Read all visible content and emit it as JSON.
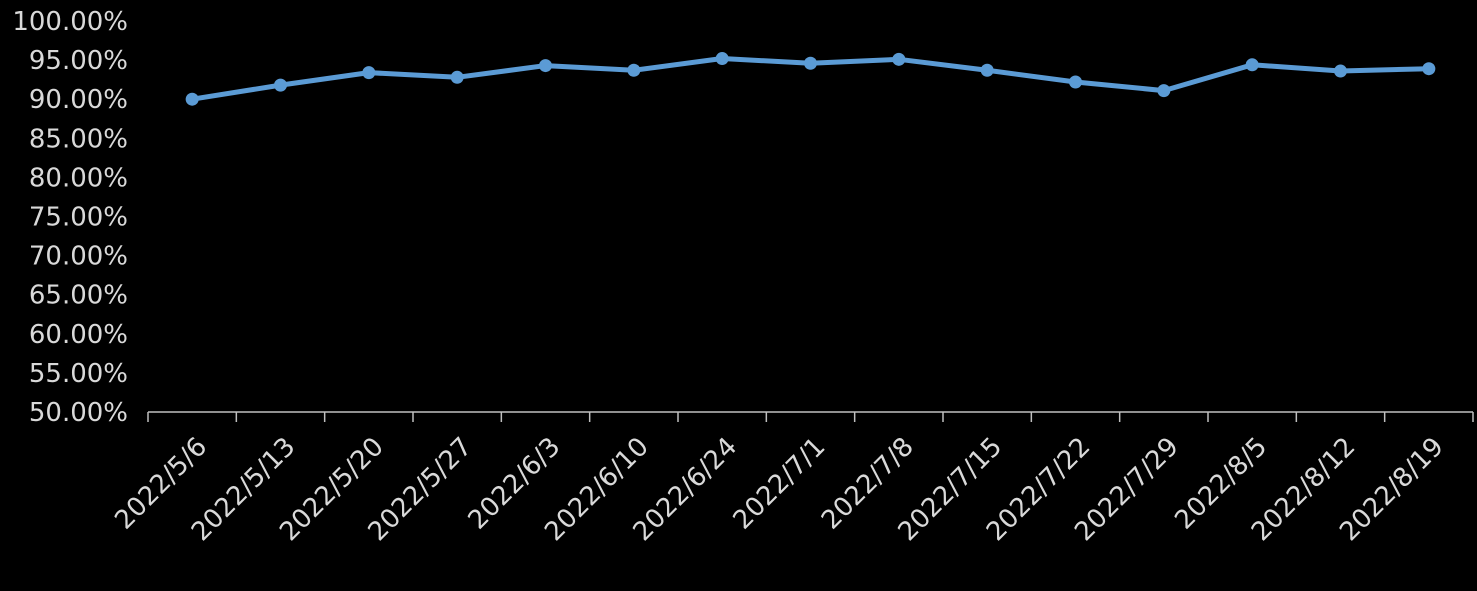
{
  "colors": {
    "background": "#000000",
    "series": "#5B9BD5",
    "axis": "#BFBFBF",
    "text": "#D9D9D9"
  },
  "chart_data": {
    "type": "line",
    "title": "",
    "xlabel": "",
    "ylabel": "",
    "grid": false,
    "legend": "none",
    "ylim": [
      0.5,
      1.0
    ],
    "y_ticks": [
      "100.00%",
      "95.00%",
      "90.00%",
      "85.00%",
      "80.00%",
      "75.00%",
      "70.00%",
      "65.00%",
      "60.00%",
      "55.00%",
      "50.00%"
    ],
    "y_tick_values": [
      1.0,
      0.95,
      0.9,
      0.85,
      0.8,
      0.75,
      0.7,
      0.65,
      0.6,
      0.55,
      0.5
    ],
    "categories": [
      "2022/5/6",
      "2022/5/13",
      "2022/5/20",
      "2022/5/27",
      "2022/6/3",
      "2022/6/10",
      "2022/6/24",
      "2022/7/1",
      "2022/7/8",
      "2022/7/15",
      "2022/7/22",
      "2022/7/29",
      "2022/8/5",
      "2022/8/12",
      "2022/8/19"
    ],
    "series": [
      {
        "values": [
          0.9,
          0.918,
          0.934,
          0.928,
          0.943,
          0.937,
          0.952,
          0.946,
          0.951,
          0.937,
          0.922,
          0.911,
          0.944,
          0.936,
          0.939
        ]
      }
    ]
  }
}
